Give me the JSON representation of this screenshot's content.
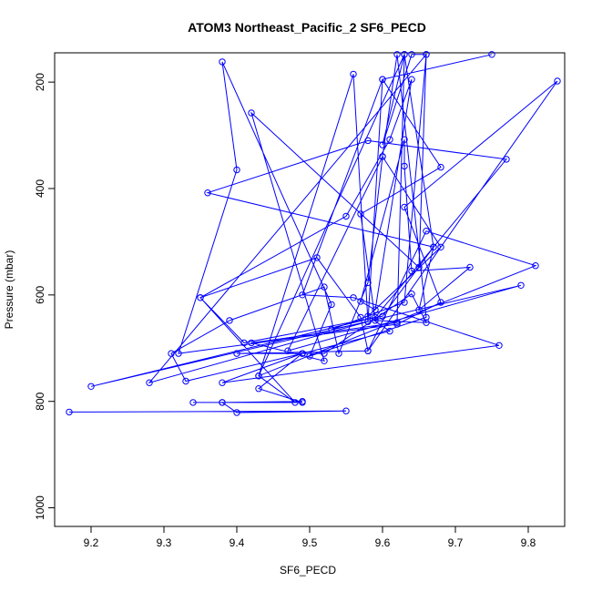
{
  "chart_data": {
    "type": "line",
    "title": "ATOM3 Northeast_Pacific_2 SF6_PECD",
    "xlabel": "SF6_PECD",
    "ylabel": "Pressure (mbar)",
    "xlim": [
      9.15,
      9.85
    ],
    "ylim": [
      1035,
      145
    ],
    "y_reversed": true,
    "x_ticks": [
      9.2,
      9.3,
      9.4,
      9.5,
      9.6,
      9.7,
      9.8
    ],
    "y_ticks": [
      200,
      400,
      600,
      800,
      1000
    ],
    "grid": false,
    "legend": "none",
    "series": [
      {
        "color": "#0000ff",
        "marker": "open-circle",
        "points": [
          [
            9.17,
            820
          ],
          [
            9.55,
            818
          ],
          [
            9.4,
            821
          ],
          [
            9.38,
            802
          ],
          [
            9.49,
            800
          ],
          [
            9.38,
            802
          ],
          [
            9.34,
            802
          ],
          [
            9.49,
            802
          ],
          [
            9.43,
            776
          ],
          [
            9.49,
            710
          ],
          [
            9.61,
            668
          ],
          [
            9.58,
            640
          ],
          [
            9.68,
            510
          ],
          [
            9.6,
            340
          ],
          [
            9.58,
            577
          ],
          [
            9.54,
            710
          ],
          [
            9.52,
            585
          ],
          [
            9.39,
            648
          ],
          [
            9.31,
            710
          ],
          [
            9.33,
            762
          ],
          [
            9.49,
            710
          ],
          [
            9.38,
            765
          ],
          [
            9.76,
            695
          ],
          [
            9.56,
            605
          ],
          [
            9.49,
            600
          ],
          [
            9.6,
            195
          ],
          [
            9.68,
            360
          ],
          [
            9.57,
            448
          ],
          [
            9.59,
            648
          ],
          [
            9.66,
            652
          ],
          [
            9.64,
            598
          ],
          [
            9.52,
            710
          ],
          [
            9.4,
            710
          ],
          [
            9.58,
            705
          ],
          [
            9.66,
            480
          ],
          [
            9.81,
            545
          ],
          [
            9.43,
            752
          ],
          [
            9.48,
            802
          ],
          [
            9.35,
            605
          ],
          [
            9.55,
            452
          ],
          [
            9.61,
            308
          ],
          [
            9.64,
            195
          ],
          [
            9.59,
            628
          ],
          [
            9.57,
            612
          ],
          [
            9.63,
            308
          ],
          [
            9.63,
            358
          ],
          [
            9.64,
            555
          ],
          [
            9.72,
            548
          ],
          [
            9.65,
            628
          ],
          [
            9.67,
            510
          ],
          [
            9.36,
            408
          ],
          [
            9.58,
            310
          ],
          [
            9.77,
            345
          ],
          [
            9.59,
            642
          ],
          [
            9.2,
            772
          ],
          [
            9.79,
            582
          ],
          [
            9.47,
            705
          ],
          [
            9.6,
            340
          ],
          [
            9.62,
            148
          ],
          [
            9.66,
            642
          ],
          [
            9.5,
            715
          ],
          [
            9.53,
            618
          ],
          [
            9.38,
            162
          ],
          [
            9.4,
            365
          ],
          [
            9.32,
            710
          ],
          [
            9.62,
            655
          ],
          [
            9.68,
            614
          ],
          [
            9.63,
            435
          ],
          [
            9.84,
            198
          ],
          [
            9.58,
            705
          ],
          [
            9.57,
            642
          ],
          [
            9.51,
            530
          ],
          [
            9.35,
            605
          ],
          [
            9.41,
            690
          ],
          [
            9.6,
            640
          ],
          [
            9.67,
            510
          ],
          [
            9.63,
            148
          ],
          [
            9.43,
            752
          ],
          [
            9.56,
            185
          ],
          [
            9.58,
            650
          ],
          [
            9.53,
            665
          ],
          [
            9.63,
            614
          ],
          [
            9.66,
            148
          ],
          [
            9.65,
            548
          ],
          [
            9.42,
            258
          ],
          [
            9.52,
            724
          ],
          [
            9.42,
            690
          ],
          [
            9.62,
            652
          ],
          [
            9.63,
            148
          ],
          [
            9.6,
            318
          ],
          [
            9.64,
            148
          ],
          [
            9.66,
            148
          ],
          [
            9.28,
            765
          ],
          [
            9.58,
            650
          ],
          [
            9.6,
            195
          ],
          [
            9.75,
            148
          ]
        ]
      }
    ]
  }
}
